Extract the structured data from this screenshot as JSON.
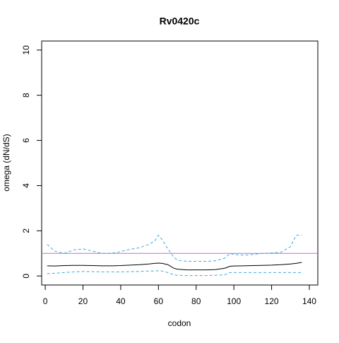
{
  "chart_data": {
    "type": "line",
    "title": "Rv0420c",
    "x_label": "codon",
    "y_label": "omega (dN/dS)",
    "x": [
      1,
      5,
      10,
      15,
      20,
      25,
      30,
      35,
      40,
      45,
      50,
      55,
      58,
      60,
      62,
      65,
      68,
      70,
      75,
      80,
      85,
      90,
      95,
      98,
      100,
      105,
      110,
      115,
      120,
      125,
      130,
      133,
      136
    ],
    "series": [
      {
        "color": "#000000",
        "dashed": false,
        "values": [
          0.45,
          0.44,
          0.46,
          0.47,
          0.47,
          0.46,
          0.45,
          0.45,
          0.46,
          0.48,
          0.5,
          0.53,
          0.56,
          0.57,
          0.56,
          0.5,
          0.35,
          0.3,
          0.27,
          0.27,
          0.27,
          0.28,
          0.34,
          0.43,
          0.44,
          0.45,
          0.46,
          0.47,
          0.48,
          0.5,
          0.53,
          0.56,
          0.6
        ]
      },
      {
        "color": "#3fa9e0",
        "dashed": true,
        "values": [
          1.4,
          1.1,
          1.0,
          1.15,
          1.2,
          1.1,
          1.0,
          1.0,
          1.08,
          1.18,
          1.25,
          1.4,
          1.55,
          1.8,
          1.6,
          1.2,
          0.85,
          0.7,
          0.65,
          0.65,
          0.65,
          0.67,
          0.78,
          1.0,
          0.95,
          0.92,
          0.95,
          1.0,
          1.02,
          1.05,
          1.3,
          1.8,
          1.82
        ]
      },
      {
        "color": "#3fa9e0",
        "dashed": true,
        "values": [
          0.1,
          0.12,
          0.15,
          0.18,
          0.2,
          0.19,
          0.18,
          0.18,
          0.18,
          0.19,
          0.2,
          0.22,
          0.22,
          0.23,
          0.22,
          0.15,
          0.06,
          0.03,
          0.02,
          0.02,
          0.02,
          0.03,
          0.05,
          0.15,
          0.15,
          0.15,
          0.15,
          0.15,
          0.15,
          0.15,
          0.15,
          0.15,
          0.15
        ]
      }
    ],
    "hline": 1,
    "hline_color": "#b873c8",
    "xlim": [
      -1.9,
      144.5
    ],
    "ylim": [
      -0.4,
      10.4
    ],
    "xticks": [
      0,
      20,
      40,
      60,
      80,
      100,
      120,
      140
    ],
    "yticks": [
      0,
      2,
      4,
      6,
      8,
      10
    ]
  }
}
